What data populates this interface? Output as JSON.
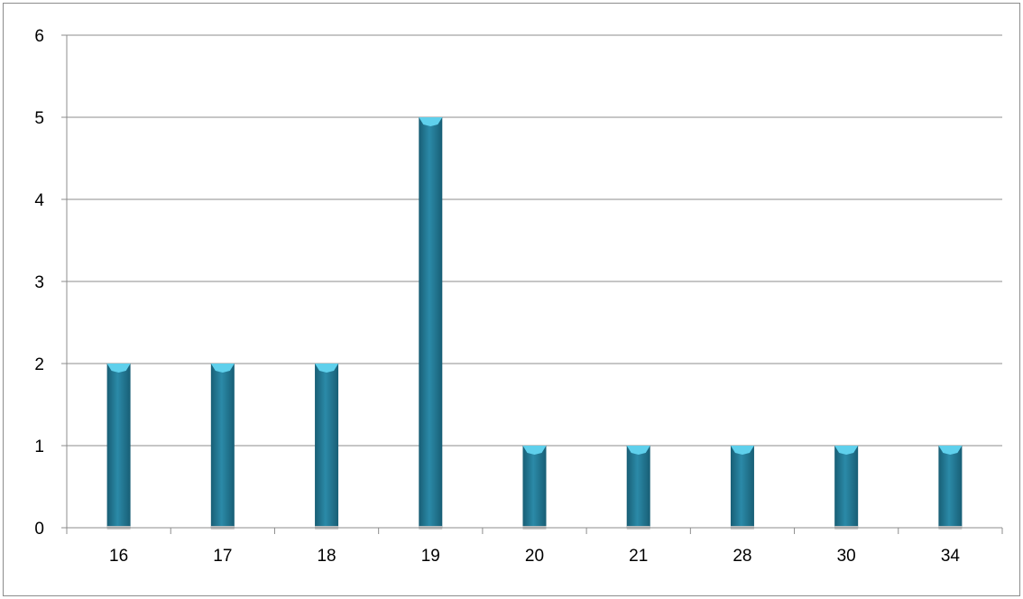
{
  "chart_data": {
    "type": "bar",
    "title": "",
    "xlabel": "",
    "ylabel": "",
    "categories": [
      "16",
      "17",
      "18",
      "19",
      "20",
      "21",
      "28",
      "30",
      "34"
    ],
    "values": [
      2,
      2,
      2,
      5,
      1,
      1,
      1,
      1,
      1
    ],
    "ylim": [
      0,
      6
    ],
    "yticks": [
      "0",
      "1",
      "2",
      "3",
      "4",
      "5",
      "6"
    ],
    "grid": true,
    "legend": "none",
    "bar_color": "#2b8aa8",
    "bar_color_dark": "#185e75",
    "bar_cap_color": "#5fd0ec",
    "gridline_color": "#8c8c8c"
  }
}
